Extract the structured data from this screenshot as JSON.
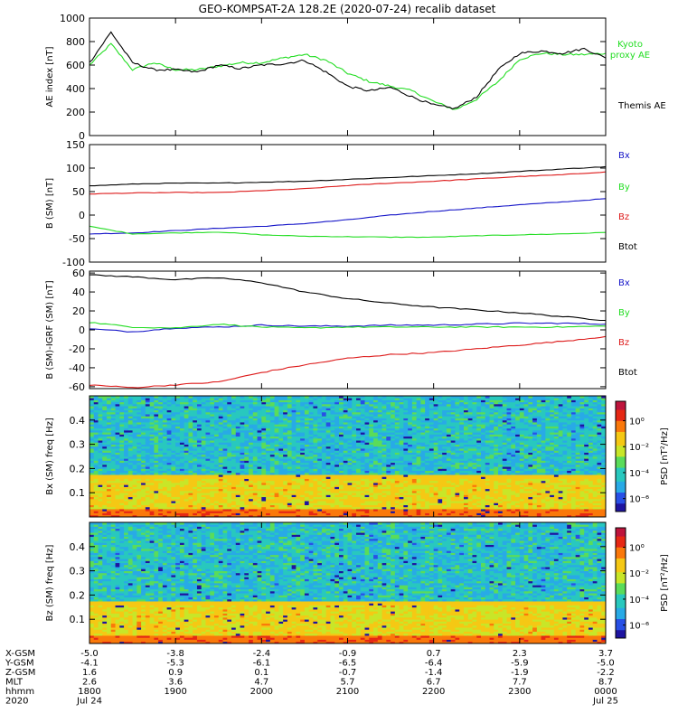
{
  "title": "GEO-KOMPSAT-2A 128.2E (2020-07-24) recalib dataset",
  "colors": {
    "black": "#000000",
    "blue": "#1414c8",
    "green": "#22dd22",
    "red": "#dd1a1a"
  },
  "chart_data": [
    {
      "type": "line",
      "ylabel": "AE index [nT]",
      "ylim": [
        0,
        1000
      ],
      "yticks": [
        0,
        200,
        400,
        600,
        800,
        1000
      ],
      "x_hours": [
        18.0,
        18.25,
        18.5,
        18.75,
        19.0,
        19.25,
        19.5,
        19.75,
        20.0,
        20.25,
        20.5,
        20.75,
        21.0,
        21.25,
        21.5,
        21.75,
        22.0,
        22.25,
        22.5,
        22.75,
        23.0,
        23.25,
        23.5,
        23.75,
        24.0
      ],
      "series": [
        {
          "name": "Kyoto proxy AE",
          "color": "#22dd22",
          "values": [
            600,
            780,
            560,
            620,
            560,
            560,
            590,
            620,
            620,
            660,
            690,
            640,
            530,
            460,
            420,
            380,
            290,
            220,
            310,
            460,
            650,
            700,
            690,
            690,
            700
          ]
        },
        {
          "name": "Themis AE",
          "color": "#000000",
          "values": [
            620,
            880,
            620,
            560,
            560,
            540,
            600,
            570,
            600,
            610,
            640,
            540,
            420,
            380,
            410,
            330,
            260,
            230,
            330,
            560,
            700,
            720,
            700,
            740,
            660
          ]
        }
      ]
    },
    {
      "type": "line",
      "ylabel": "B (SM) [nT]",
      "ylim": [
        -100,
        150
      ],
      "yticks": [
        -100,
        -50,
        0,
        50,
        100,
        150
      ],
      "x_hours": [
        18.0,
        18.5,
        19.0,
        19.5,
        20.0,
        20.5,
        21.0,
        21.5,
        22.0,
        22.5,
        23.0,
        23.5,
        24.0
      ],
      "series": [
        {
          "name": "Bx",
          "color": "#1414c8",
          "values": [
            -40,
            -38,
            -33,
            -28,
            -24,
            -18,
            -10,
            0,
            8,
            15,
            22,
            28,
            35
          ]
        },
        {
          "name": "By",
          "color": "#22dd22",
          "values": [
            -24,
            -40,
            -38,
            -36,
            -42,
            -45,
            -46,
            -47,
            -47,
            -44,
            -42,
            -40,
            -37
          ]
        },
        {
          "name": "Bz",
          "color": "#dd1a1a",
          "values": [
            45,
            47,
            48,
            48,
            52,
            56,
            63,
            68,
            72,
            77,
            82,
            86,
            92
          ]
        },
        {
          "name": "Btot",
          "color": "#000000",
          "values": [
            62,
            66,
            68,
            68,
            70,
            72,
            76,
            80,
            84,
            88,
            93,
            98,
            103
          ]
        }
      ]
    },
    {
      "type": "line",
      "ylabel": "B (SM)-IGRF (SM) [nT]",
      "ylim": [
        -62,
        62
      ],
      "yticks": [
        -60,
        -40,
        -20,
        0,
        20,
        40,
        60
      ],
      "x_hours": [
        18.0,
        18.5,
        19.0,
        19.5,
        20.0,
        20.5,
        21.0,
        21.5,
        22.0,
        22.5,
        23.0,
        23.5,
        24.0
      ],
      "series": [
        {
          "name": "Bx",
          "color": "#1414c8",
          "values": [
            1,
            -2,
            2,
            3,
            5,
            4,
            4,
            5,
            5,
            6,
            7,
            7,
            6
          ]
        },
        {
          "name": "By",
          "color": "#22dd22",
          "values": [
            8,
            3,
            2,
            6,
            3,
            2,
            3,
            3,
            3,
            3,
            3,
            3,
            4
          ]
        },
        {
          "name": "Bz",
          "color": "#dd1a1a",
          "values": [
            -58,
            -61,
            -58,
            -55,
            -45,
            -37,
            -30,
            -26,
            -24,
            -20,
            -16,
            -12,
            -7
          ]
        },
        {
          "name": "Btot",
          "color": "#000000",
          "values": [
            58,
            56,
            53,
            55,
            50,
            40,
            33,
            28,
            24,
            21,
            18,
            14,
            10
          ]
        }
      ]
    },
    {
      "type": "heatmap",
      "ylabel": "Bx (SM) freq [Hz]",
      "ylim": [
        0,
        0.5
      ],
      "yticks": [
        0.1,
        0.2,
        0.3,
        0.4
      ],
      "colorbar_label": "PSD [nT²/Hz]",
      "colorbar_ticks": [
        "10⁰",
        "10⁻²",
        "10⁻⁴",
        "10⁻⁶"
      ],
      "colorbar_exp": [
        0,
        -2,
        -4,
        -6
      ],
      "colorbar_range": [
        -7,
        1.5
      ]
    },
    {
      "type": "heatmap",
      "ylabel": "Bz (SM) freq [Hz]",
      "ylim": [
        0,
        0.5
      ],
      "yticks": [
        0.1,
        0.2,
        0.3,
        0.4
      ],
      "colorbar_label": "PSD [nT²/Hz]",
      "colorbar_ticks": [
        "10⁰",
        "10⁻²",
        "10⁻⁴",
        "10⁻⁶"
      ],
      "colorbar_exp": [
        0,
        -2,
        -4,
        -6
      ],
      "colorbar_range": [
        -7,
        1.5
      ]
    }
  ],
  "panel_labels": [
    [
      {
        "text": "Kyoto",
        "color": "#22dd22"
      },
      {
        "text": "proxy AE",
        "color": "#22dd22"
      },
      {
        "text": "Themis AE",
        "color": "#000000"
      }
    ],
    [
      {
        "text": "Bx",
        "color": "#1414c8"
      },
      {
        "text": "By",
        "color": "#22dd22"
      },
      {
        "text": "Bz",
        "color": "#dd1a1a"
      },
      {
        "text": "Btot",
        "color": "#000000"
      }
    ],
    [
      {
        "text": "Bx",
        "color": "#1414c8"
      },
      {
        "text": "By",
        "color": "#22dd22"
      },
      {
        "text": "Bz",
        "color": "#dd1a1a"
      },
      {
        "text": "Btot",
        "color": "#000000"
      }
    ]
  ],
  "x_axis": {
    "range_hours": [
      18,
      24
    ],
    "tick_hours": [
      18,
      19,
      20,
      21,
      22,
      23,
      24
    ],
    "rows": [
      {
        "label": "X-GSM",
        "values": [
          "-5.0",
          "-3.8",
          "-2.4",
          "-0.9",
          "0.7",
          "2.3",
          "3.7"
        ]
      },
      {
        "label": "Y-GSM",
        "values": [
          "-4.1",
          "-5.3",
          "-6.1",
          "-6.5",
          "-6.4",
          "-5.9",
          "-5.0"
        ]
      },
      {
        "label": "Z-GSM",
        "values": [
          "1.6",
          "0.9",
          "0.1",
          "-0.7",
          "-1.4",
          "-1.9",
          "-2.2"
        ]
      },
      {
        "label": "MLT",
        "values": [
          "2.6",
          "3.6",
          "4.7",
          "5.7",
          "6.7",
          "7.7",
          "8.7"
        ]
      },
      {
        "label": "hhmm",
        "values": [
          "1800",
          "1900",
          "2000",
          "2100",
          "2200",
          "2300",
          "0000"
        ]
      },
      {
        "label": "2020",
        "values": [
          "Jul 24",
          "",
          "",
          "",
          "",
          "",
          "Jul 25"
        ]
      }
    ]
  }
}
